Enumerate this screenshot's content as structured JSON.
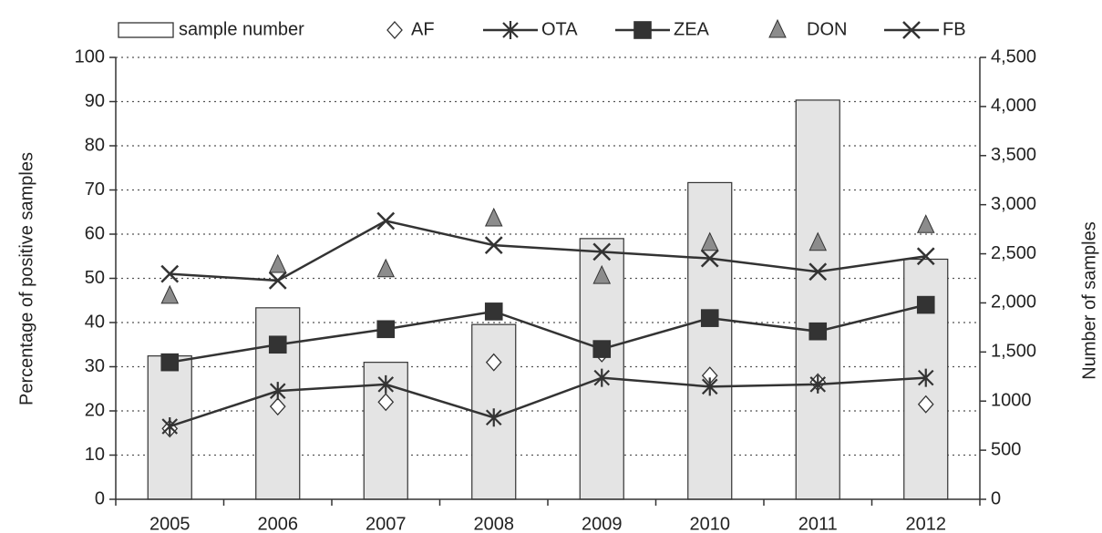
{
  "chart_data": {
    "type": "bar_line",
    "y_label": "Percentage of positive samples",
    "y2_label": "Number of samples",
    "categories": [
      "2005",
      "2006",
      "2007",
      "2008",
      "2009",
      "2010",
      "2011",
      "2012"
    ],
    "ylim": [
      0,
      100
    ],
    "yticks": [
      0,
      10,
      20,
      30,
      40,
      50,
      60,
      70,
      80,
      90,
      100
    ],
    "y2lim": [
      0,
      4500
    ],
    "y2ticks": [
      0,
      500,
      1000,
      {
        "value": 1500,
        "label": "1,500"
      },
      {
        "value": 2000,
        "label": "2,000"
      },
      {
        "value": 2500,
        "label": "2,500"
      },
      {
        "value": 3000,
        "label": "3,000"
      },
      {
        "value": 3500,
        "label": "3,500"
      },
      {
        "value": 4000,
        "label": "4,000"
      },
      {
        "value": 4500,
        "label": "4,500"
      }
    ],
    "grid": true,
    "series": [
      {
        "name": "sample number",
        "kind": "bar",
        "axis": "y2",
        "color": "#e4e4e4",
        "values": [
          1460,
          1950,
          1395,
          1780,
          2655,
          3225,
          4065,
          2445
        ]
      },
      {
        "name": "AF",
        "kind": "marker",
        "marker": "diamond",
        "color": "#ffffff",
        "values": [
          16,
          21,
          22,
          31,
          33,
          28,
          26.5,
          21.5
        ]
      },
      {
        "name": "OTA",
        "kind": "line",
        "marker": "star",
        "color": "#333333",
        "values": [
          16.5,
          24.5,
          26,
          18.5,
          27.5,
          25.5,
          26,
          27.5
        ]
      },
      {
        "name": "ZEA",
        "kind": "line",
        "marker": "square",
        "color": "#333333",
        "values": [
          31,
          35,
          38.5,
          42.5,
          34,
          41,
          38,
          44
        ]
      },
      {
        "name": "DON",
        "kind": "marker",
        "marker": "triangle",
        "color": "#8c8c8c",
        "values": [
          46,
          53,
          52,
          63.5,
          50.5,
          58,
          58,
          62
        ]
      },
      {
        "name": "FB",
        "kind": "line",
        "marker": "cross",
        "color": "#333333",
        "values": [
          51,
          49.5,
          63,
          57.5,
          56,
          54.5,
          51.5,
          55
        ]
      }
    ]
  }
}
